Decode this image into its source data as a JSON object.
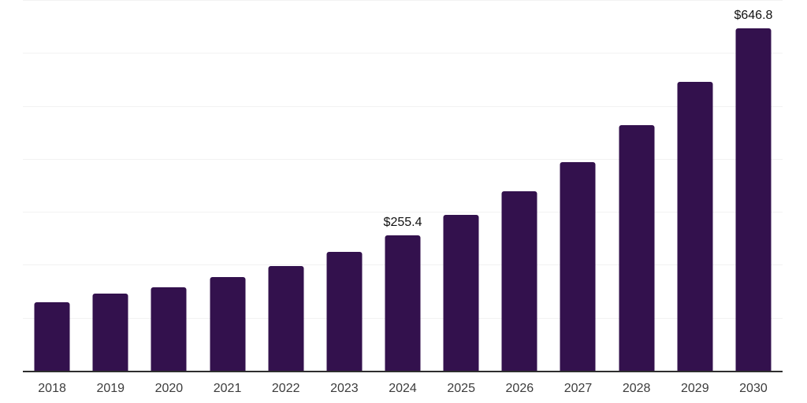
{
  "chart_data": {
    "type": "bar",
    "title": "",
    "xlabel": "",
    "ylabel": "",
    "categories": [
      "2018",
      "2019",
      "2020",
      "2021",
      "2022",
      "2023",
      "2024",
      "2025",
      "2026",
      "2027",
      "2028",
      "2029",
      "2030"
    ],
    "values": [
      130,
      145,
      158,
      177,
      198,
      225,
      255.4,
      294,
      339,
      394,
      464,
      546,
      646.8
    ],
    "data_labels": {
      "2024": "$255.4",
      "2030": "$646.8"
    },
    "ylim": [
      0,
      700
    ],
    "gridlines": [
      100,
      200,
      300,
      400,
      500,
      600,
      700
    ],
    "grid": "horizontal",
    "legend": "none",
    "colors": {
      "bar": "#33114d",
      "background": "#ffffff",
      "gridline": "#f2f2f2",
      "axis_line": "#2e2e2e",
      "tick_label": "#3c3c3c",
      "data_label": "#111111"
    }
  }
}
